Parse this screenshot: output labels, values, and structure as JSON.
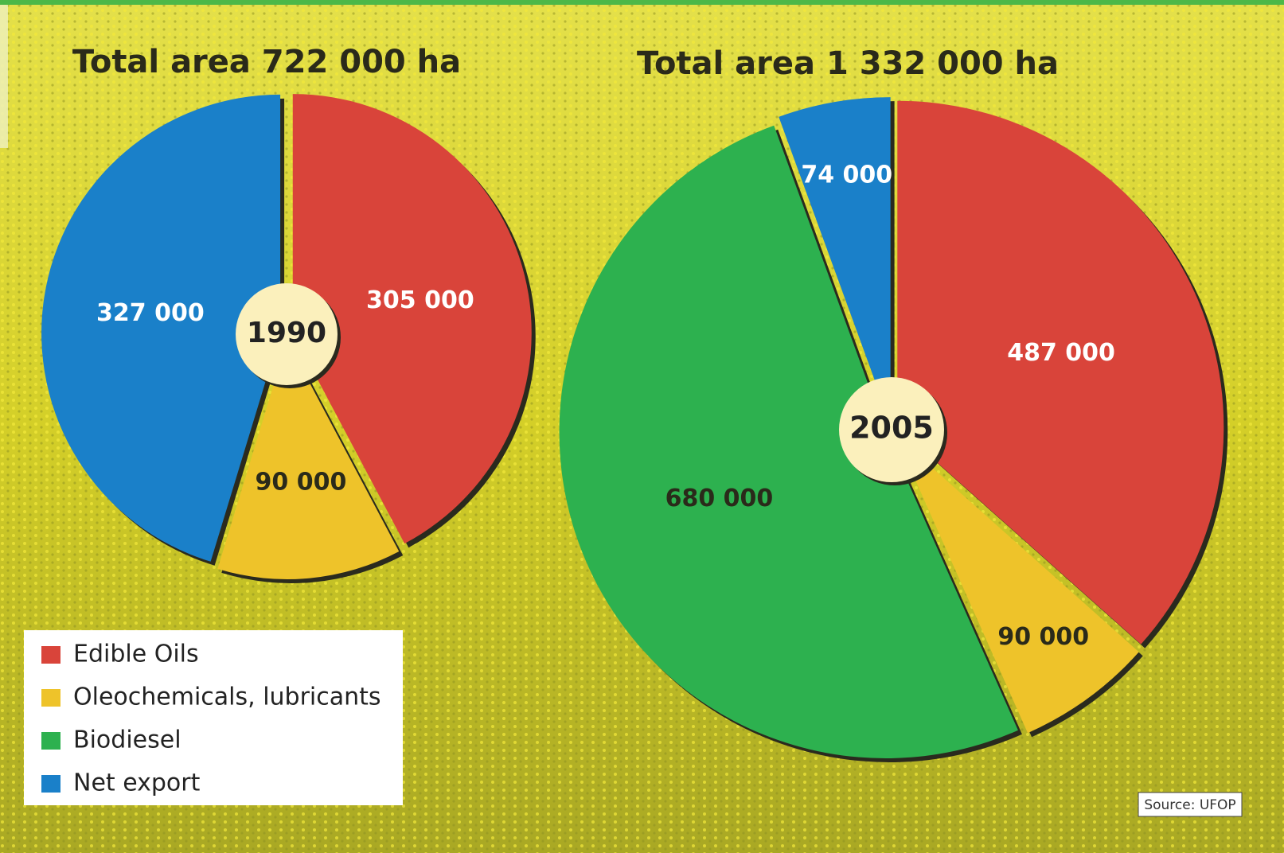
{
  "chart_data": [
    {
      "type": "pie",
      "title": "Total area 722 000 ha",
      "center_label": "1990",
      "categories": [
        "Edible Oils",
        "Oleochemicals, lubricants",
        "Net export"
      ],
      "values": [
        305000,
        90000,
        327000
      ],
      "value_labels": [
        "305 000",
        "90 000",
        "327 000"
      ],
      "colors": [
        "#d9443a",
        "#eec32a",
        "#1a80c9"
      ]
    },
    {
      "type": "pie",
      "title": "Total area 1 332 000 ha",
      "center_label": "2005",
      "categories": [
        "Edible Oils",
        "Oleochemicals, lubricants",
        "Biodiesel",
        "Net export"
      ],
      "values": [
        487000,
        90000,
        680000,
        74000
      ],
      "value_labels": [
        "487 000",
        "90 000",
        "680 000",
        "74 000"
      ],
      "colors": [
        "#d9443a",
        "#eec32a",
        "#2db14f",
        "#1a80c9"
      ]
    }
  ],
  "legend": {
    "entries": [
      {
        "name": "Edible Oils",
        "color": "#d9443a"
      },
      {
        "name": "Oleochemicals, lubricants",
        "color": "#eec32a"
      },
      {
        "name": "Biodiesel",
        "color": "#2db14f"
      },
      {
        "name": "Net export",
        "color": "#1a80c9"
      }
    ]
  },
  "source": "Source: UFOP"
}
